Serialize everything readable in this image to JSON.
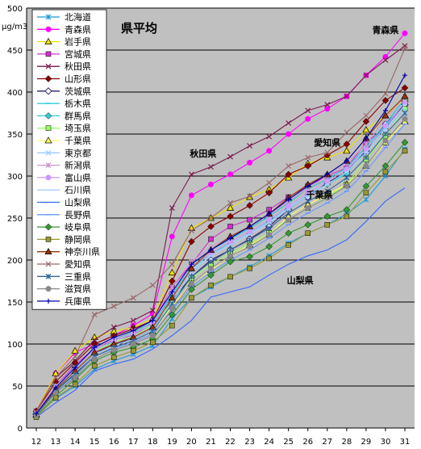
{
  "chart_data": {
    "type": "line",
    "title": "県平均",
    "unit_label": "μg/m3",
    "x": [
      12,
      13,
      14,
      15,
      16,
      17,
      18,
      19,
      20,
      21,
      22,
      23,
      24,
      25,
      26,
      27,
      28,
      29,
      30,
      31
    ],
    "ylim": [
      0,
      500
    ],
    "yticks": [
      0,
      50,
      100,
      150,
      200,
      250,
      300,
      350,
      400,
      450,
      500
    ],
    "grid": "horizontal",
    "legend_position": "left",
    "annotations": [
      {
        "text": "青森県",
        "x": 30.0,
        "y": 470
      },
      {
        "text": "秋田県",
        "x": 20.6,
        "y": 323
      },
      {
        "text": "愛知県",
        "x": 27.0,
        "y": 336
      },
      {
        "text": "千葉県",
        "x": 26.6,
        "y": 274
      },
      {
        "text": "山梨県",
        "x": 25.6,
        "y": 172
      }
    ],
    "series": [
      {
        "name": "北海道",
        "color": "#1f9bd7",
        "marker": "asterisk",
        "values": [
          15,
          35,
          50,
          70,
          80,
          88,
          98,
          130,
          155,
          168,
          180,
          192,
          205,
          220,
          232,
          242,
          255,
          272,
          300,
          332
        ]
      },
      {
        "name": "青森県",
        "color": "#ff00ff",
        "marker": "circle",
        "values": [
          20,
          65,
          90,
          100,
          110,
          122,
          136,
          228,
          277,
          290,
          302,
          316,
          330,
          350,
          368,
          380,
          395,
          420,
          442,
          470
        ]
      },
      {
        "name": "岩手県",
        "color": "#f2e200",
        "marker": "triangle",
        "values": [
          20,
          65,
          92,
          108,
          115,
          120,
          130,
          185,
          238,
          250,
          262,
          275,
          284,
          298,
          315,
          322,
          330,
          355,
          372,
          392
        ]
      },
      {
        "name": "宮城県",
        "color": "#cc33cc",
        "marker": "square",
        "values": [
          18,
          50,
          75,
          95,
          105,
          110,
          125,
          168,
          195,
          225,
          240,
          248,
          260,
          275,
          288,
          300,
          310,
          340,
          358,
          386
        ]
      },
      {
        "name": "秋田県",
        "color": "#7a1a4f",
        "marker": "x",
        "values": [
          20,
          60,
          80,
          105,
          120,
          128,
          140,
          262,
          302,
          311,
          323,
          336,
          347,
          363,
          378,
          385,
          395,
          420,
          438,
          455
        ]
      },
      {
        "name": "山形県",
        "color": "#8b0000",
        "marker": "diamond",
        "values": [
          20,
          55,
          78,
          100,
          110,
          118,
          128,
          175,
          222,
          240,
          252,
          265,
          280,
          302,
          312,
          325,
          338,
          365,
          390,
          405
        ]
      },
      {
        "name": "茨城県",
        "color": "#222266",
        "marker": "diamond-open",
        "values": [
          16,
          45,
          65,
          88,
          100,
          106,
          118,
          152,
          180,
          200,
          212,
          225,
          240,
          260,
          275,
          292,
          305,
          330,
          362,
          385
        ]
      },
      {
        "name": "栃木県",
        "color": "#1fc7d9",
        "marker": "dash",
        "values": [
          17,
          48,
          70,
          92,
          104,
          112,
          124,
          158,
          195,
          212,
          225,
          238,
          252,
          268,
          285,
          296,
          310,
          335,
          362,
          392
        ]
      },
      {
        "name": "群馬県",
        "color": "#33cccc",
        "marker": "diamond",
        "values": [
          17,
          50,
          72,
          95,
          106,
          114,
          126,
          160,
          190,
          208,
          220,
          232,
          246,
          262,
          278,
          290,
          303,
          332,
          358,
          388
        ]
      },
      {
        "name": "埼玉県",
        "color": "#99ff66",
        "marker": "square",
        "values": [
          16,
          48,
          70,
          92,
          102,
          110,
          122,
          150,
          178,
          195,
          208,
          220,
          232,
          248,
          262,
          275,
          290,
          320,
          348,
          380
        ]
      },
      {
        "name": "千葉県",
        "color": "#ffff66",
        "marker": "triangle",
        "values": [
          16,
          44,
          62,
          84,
          96,
          104,
          115,
          145,
          172,
          188,
          205,
          218,
          230,
          252,
          266,
          278,
          290,
          312,
          340,
          365
        ]
      },
      {
        "name": "東京都",
        "color": "#99ccff",
        "marker": "x",
        "values": [
          16,
          46,
          66,
          88,
          98,
          106,
          118,
          150,
          185,
          205,
          220,
          232,
          245,
          262,
          278,
          290,
          305,
          328,
          355,
          378
        ]
      },
      {
        "name": "新潟県",
        "color": "#cc99cc",
        "marker": "asterisk",
        "values": [
          18,
          50,
          72,
          95,
          106,
          116,
          128,
          168,
          198,
          215,
          228,
          240,
          254,
          270,
          285,
          300,
          315,
          338,
          368,
          395
        ]
      },
      {
        "name": "富山県",
        "color": "#cc99ff",
        "marker": "circle",
        "values": [
          17,
          48,
          70,
          93,
          104,
          112,
          124,
          162,
          192,
          208,
          222,
          234,
          248,
          264,
          280,
          294,
          308,
          332,
          360,
          388
        ]
      },
      {
        "name": "石川県",
        "color": "#aaccff",
        "marker": "dash",
        "values": [
          16,
          46,
          68,
          90,
          100,
          108,
          120,
          155,
          188,
          205,
          218,
          230,
          244,
          260,
          275,
          290,
          305,
          328,
          355,
          385
        ]
      },
      {
        "name": "山梨県",
        "color": "#3366ff",
        "marker": "none",
        "values": [
          13,
          30,
          45,
          68,
          76,
          82,
          94,
          110,
          128,
          156,
          162,
          168,
          182,
          195,
          205,
          212,
          224,
          246,
          270,
          286
        ]
      },
      {
        "name": "長野県",
        "color": "#6699ff",
        "marker": "dash",
        "values": [
          15,
          42,
          62,
          85,
          95,
          102,
          112,
          140,
          168,
          186,
          200,
          212,
          226,
          242,
          256,
          268,
          282,
          306,
          334,
          362
        ]
      },
      {
        "name": "岐阜県",
        "color": "#339933",
        "marker": "diamond",
        "values": [
          14,
          38,
          58,
          80,
          90,
          96,
          106,
          135,
          165,
          182,
          198,
          204,
          216,
          232,
          242,
          252,
          260,
          288,
          312,
          340
        ]
      },
      {
        "name": "静岡県",
        "color": "#999933",
        "marker": "square",
        "values": [
          13,
          36,
          52,
          74,
          84,
          92,
          102,
          122,
          155,
          170,
          180,
          190,
          202,
          218,
          232,
          242,
          252,
          280,
          305,
          330
        ]
      },
      {
        "name": "神奈川県",
        "color": "#993300",
        "marker": "triangle",
        "values": [
          16,
          46,
          68,
          90,
          100,
          108,
          120,
          155,
          190,
          212,
          228,
          240,
          255,
          274,
          290,
          302,
          318,
          345,
          372,
          395
        ]
      },
      {
        "name": "愛知県",
        "color": "#996666",
        "marker": "x",
        "values": [
          19,
          60,
          85,
          135,
          145,
          155,
          170,
          195,
          235,
          250,
          268,
          276,
          292,
          312,
          322,
          328,
          352,
          372,
          398,
          452
        ]
      },
      {
        "name": "三重県",
        "color": "#336699",
        "marker": "asterisk",
        "values": [
          16,
          44,
          64,
          85,
          96,
          104,
          115,
          148,
          180,
          198,
          212,
          224,
          238,
          256,
          270,
          282,
          298,
          322,
          350,
          375
        ]
      },
      {
        "name": "滋賀県",
        "color": "#888888",
        "marker": "circle",
        "values": [
          15,
          42,
          60,
          82,
          93,
          100,
          110,
          142,
          172,
          190,
          205,
          216,
          230,
          248,
          262,
          274,
          288,
          312,
          342,
          368
        ]
      },
      {
        "name": "兵庫県",
        "color": "#0000aa",
        "marker": "plus",
        "values": [
          17,
          48,
          72,
          96,
          108,
          116,
          128,
          162,
          195,
          212,
          226,
          240,
          255,
          272,
          288,
          302,
          318,
          345,
          378,
          420
        ]
      }
    ]
  }
}
